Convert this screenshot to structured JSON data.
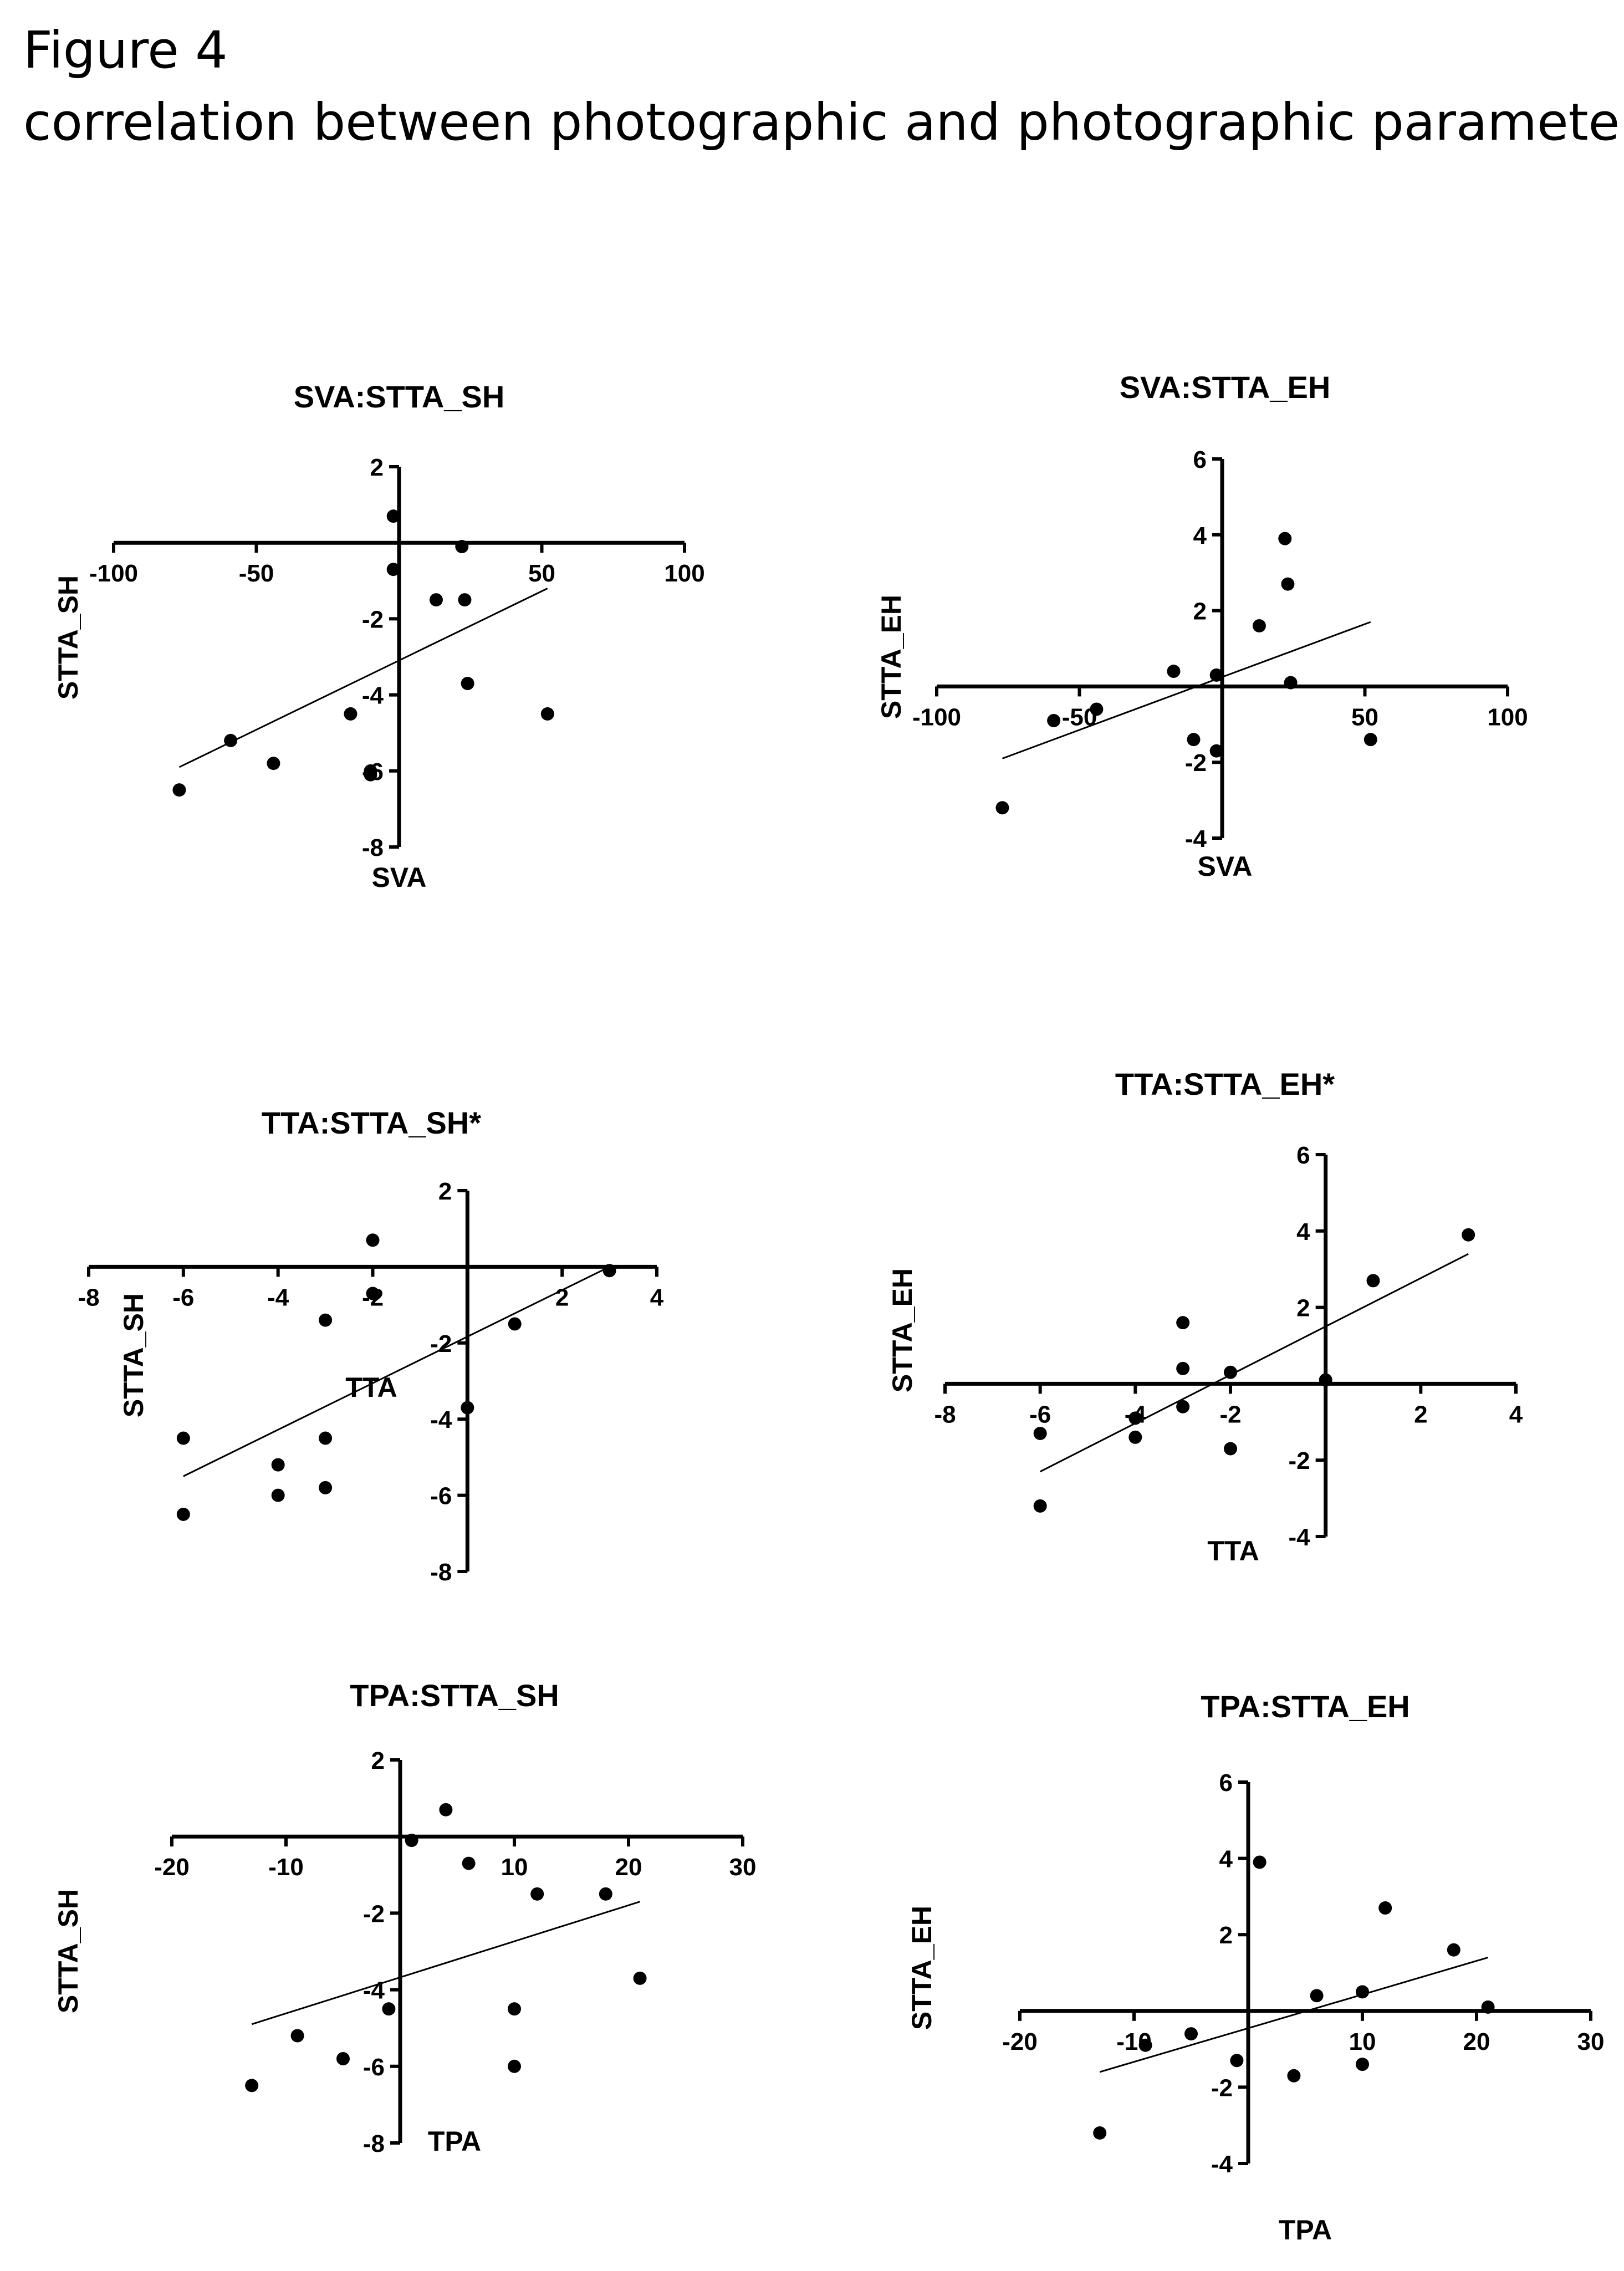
{
  "figure": {
    "title": "Figure 4",
    "subtitle": "correlation between photographic and photographic parameters"
  },
  "chart_data": [
    {
      "type": "scatter",
      "title": "SVA:STTA_SH",
      "xlabel": "SVA",
      "ylabel": "STTA_SH",
      "xlim": [
        -100,
        100
      ],
      "ylim": [
        -8,
        2
      ],
      "xticks": [
        -100,
        -50,
        50,
        100
      ],
      "yticks": [
        2,
        -2,
        -4,
        -6,
        -8
      ],
      "x": [
        -77,
        -59,
        -44,
        -17,
        -2,
        -2,
        13,
        22,
        23,
        24,
        52,
        -10,
        -10
      ],
      "y": [
        -6.5,
        -5.2,
        -5.8,
        -4.5,
        0.7,
        -0.7,
        -1.5,
        -0.1,
        -1.5,
        -3.7,
        -4.5,
        -6.0,
        -6.1
      ],
      "trend": {
        "x": [
          -77,
          52
        ],
        "y": [
          -5.9,
          -1.2
        ]
      },
      "grid": false
    },
    {
      "type": "scatter",
      "title": "SVA:STTA_EH",
      "xlabel": "SVA",
      "ylabel": "STTA_EH",
      "xlim": [
        -100,
        100
      ],
      "ylim": [
        -4,
        6
      ],
      "xticks": [
        -100,
        -50,
        50,
        100
      ],
      "yticks": [
        6,
        4,
        2,
        -2,
        -4
      ],
      "x": [
        -77,
        -59,
        -44,
        -17,
        -10,
        -2,
        -2,
        13,
        22,
        23,
        24,
        52
      ],
      "y": [
        -3.2,
        -0.9,
        -0.6,
        0.4,
        -1.4,
        -1.7,
        0.3,
        1.6,
        3.9,
        2.7,
        0.1,
        -1.4
      ],
      "trend": {
        "x": [
          -77,
          52
        ],
        "y": [
          -1.9,
          1.7
        ]
      },
      "grid": false
    },
    {
      "type": "scatter",
      "title": "TTA:STTA_SH*",
      "xlabel": "TTA",
      "ylabel": "STTA_SH",
      "xlim": [
        -8,
        4
      ],
      "ylim": [
        -8,
        2
      ],
      "xticks": [
        -8,
        -6,
        -4,
        -2,
        2,
        4
      ],
      "yticks": [
        2,
        -2,
        -4,
        -6,
        -8
      ],
      "x": [
        -6,
        -6,
        -4,
        -4,
        -3,
        -3,
        -3,
        -2,
        -2,
        0,
        1,
        3
      ],
      "y": [
        -4.5,
        -6.5,
        -5.2,
        -6.0,
        -1.4,
        -4.5,
        -5.8,
        0.7,
        -0.7,
        -3.7,
        -1.5,
        -0.1
      ],
      "trend": {
        "x": [
          -6,
          3
        ],
        "y": [
          -5.5,
          0
        ]
      },
      "grid": false
    },
    {
      "type": "scatter",
      "title": "TTA:STTA_EH*",
      "xlabel": "TTA",
      "ylabel": "STTA_EH",
      "xlim": [
        -8,
        4
      ],
      "ylim": [
        -4,
        6
      ],
      "xticks": [
        -8,
        -6,
        -4,
        -2,
        2,
        4
      ],
      "yticks": [
        6,
        4,
        2,
        -2,
        -4
      ],
      "x": [
        -6,
        -6,
        -4,
        -4,
        -3,
        -3,
        -3,
        -2,
        -2,
        0,
        1,
        3
      ],
      "y": [
        -1.3,
        -3.2,
        -0.9,
        -1.4,
        1.6,
        0.4,
        -0.6,
        0.3,
        -1.7,
        0.1,
        2.7,
        3.9
      ],
      "trend": {
        "x": [
          -6,
          3
        ],
        "y": [
          -2.3,
          3.4
        ]
      },
      "grid": false
    },
    {
      "type": "scatter",
      "title": "TPA:STTA_SH",
      "xlabel": "TPA",
      "ylabel": "STTA_SH",
      "xlim": [
        -20,
        30
      ],
      "ylim": [
        -8,
        2
      ],
      "xticks": [
        -20,
        -10,
        10,
        20,
        30
      ],
      "yticks": [
        2,
        -2,
        -4,
        -6,
        -8
      ],
      "x": [
        -13,
        -9,
        -5,
        -1,
        1,
        4,
        6,
        10,
        10,
        12,
        18,
        21
      ],
      "y": [
        -6.5,
        -5.2,
        -5.8,
        -4.5,
        -0.1,
        0.7,
        -0.7,
        -4.5,
        -6.0,
        -1.5,
        -1.5,
        -3.7
      ],
      "trend": {
        "x": [
          -13,
          21
        ],
        "y": [
          -4.9,
          -1.7
        ]
      },
      "grid": false
    },
    {
      "type": "scatter",
      "title": "TPA:STTA_EH",
      "xlabel": "TPA",
      "ylabel": "STTA_EH",
      "xlim": [
        -20,
        30
      ],
      "ylim": [
        -4,
        6
      ],
      "xticks": [
        -20,
        -10,
        10,
        20,
        30
      ],
      "yticks": [
        6,
        4,
        2,
        -2,
        -4
      ],
      "x": [
        -13,
        -9,
        -5,
        -1,
        1,
        4,
        6,
        10,
        10,
        12,
        18,
        21
      ],
      "y": [
        -3.2,
        -0.9,
        -0.6,
        -1.3,
        3.9,
        -1.7,
        0.4,
        -1.4,
        0.5,
        2.7,
        1.6,
        0.1
      ],
      "trend": {
        "x": [
          -13,
          21
        ],
        "y": [
          -1.6,
          1.4
        ]
      },
      "grid": false
    }
  ]
}
